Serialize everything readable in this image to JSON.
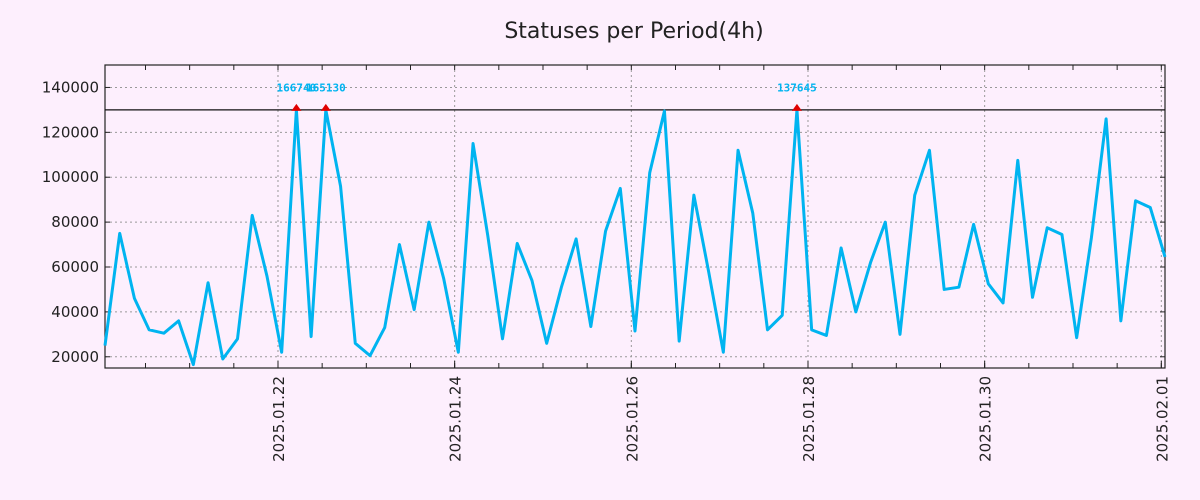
{
  "chart_data": {
    "type": "line",
    "title": "Statuses per Period(4h)",
    "xlabel": "",
    "ylabel": "",
    "start": "2025-01-20 01:00",
    "step_hours": 4,
    "values": [
      25000,
      75000,
      46000,
      32000,
      30500,
      36000,
      16500,
      53000,
      19000,
      28000,
      83000,
      56000,
      22000,
      166740,
      29000,
      165130,
      96000,
      26000,
      20500,
      33000,
      70000,
      41000,
      80000,
      55000,
      22000,
      115000,
      74000,
      28000,
      70500,
      54000,
      26000,
      51000,
      72500,
      33500,
      76000,
      95000,
      31500,
      102000,
      129500,
      27000,
      92000,
      58000,
      22000,
      112000,
      84000,
      32000,
      38500,
      137645,
      32000,
      29500,
      68500,
      40000,
      62000,
      80000,
      30000,
      92000,
      112000,
      50000,
      51000,
      79000,
      52500,
      44000,
      107500,
      46500,
      77500,
      74500,
      28500,
      73000,
      126000,
      36000,
      89500,
      86500,
      64500
    ],
    "cap": 130000,
    "ylim": [
      15000,
      150000
    ],
    "yticks": [
      20000,
      40000,
      60000,
      80000,
      100000,
      120000,
      140000
    ],
    "xticks": [
      {
        "label": "2025.01.22",
        "day": 2
      },
      {
        "label": "2025.01.24",
        "day": 4
      },
      {
        "label": "2025.01.26",
        "day": 6
      },
      {
        "label": "2025.01.28",
        "day": 8
      },
      {
        "label": "2025.01.30",
        "day": 10
      },
      {
        "label": "2025.02.01",
        "day": 12
      }
    ],
    "annotations": [
      {
        "index": 13,
        "label": "166740"
      },
      {
        "index": 15,
        "label": "165130"
      },
      {
        "index": 47,
        "label": "137645"
      }
    ],
    "grid": true,
    "colors": {
      "line": "#00b4f0",
      "marker": "#e00000",
      "cap": "#111111",
      "grid": "#999999"
    }
  }
}
